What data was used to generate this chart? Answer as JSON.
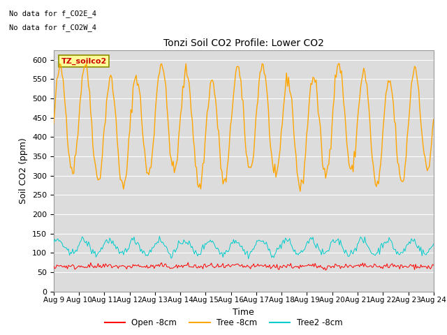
{
  "title": "Tonzi Soil CO2 Profile: Lower CO2",
  "xlabel": "Time",
  "ylabel": "Soil CO2 (ppm)",
  "ylim": [
    0,
    625
  ],
  "yticks": [
    0,
    50,
    100,
    150,
    200,
    250,
    300,
    350,
    400,
    450,
    500,
    550,
    600
  ],
  "text_lines": [
    "No data for f_CO2E_4",
    "No data for f_CO2W_4"
  ],
  "legend_label": "TZ_soilco2",
  "legend_box_color": "#FFFF99",
  "legend_box_edge": "#8B8B00",
  "bg_color": "#DCDCDC",
  "series": {
    "open": {
      "label": "Open -8cm",
      "color": "#FF0000"
    },
    "tree": {
      "label": "Tree -8cm",
      "color": "#FFA500"
    },
    "tree2": {
      "label": "Tree2 -8cm",
      "color": "#00CCCC"
    }
  },
  "n_points": 360,
  "xticklabels": [
    "Aug 9",
    "Aug 10",
    "Aug 11",
    "Aug 12",
    "Aug 13",
    "Aug 14",
    "Aug 15",
    "Aug 16",
    "Aug 17",
    "Aug 18",
    "Aug 19",
    "Aug 20",
    "Aug 21",
    "Aug 22",
    "Aug 23",
    "Aug 24"
  ],
  "xtick_positions": [
    0,
    24,
    48,
    72,
    96,
    120,
    144,
    168,
    192,
    216,
    240,
    264,
    288,
    312,
    336,
    360
  ]
}
